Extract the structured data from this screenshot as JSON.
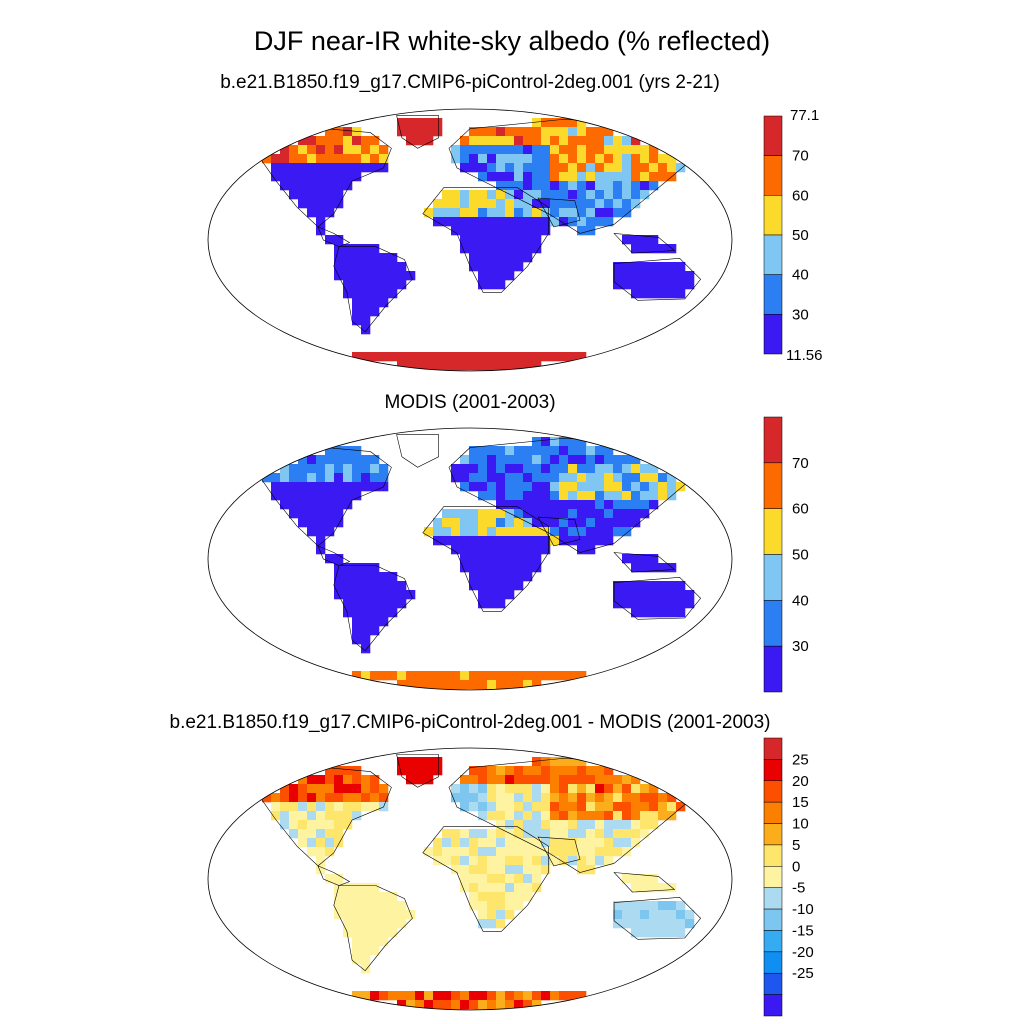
{
  "title": "DJF near-IR white-sky albedo (% reflected)",
  "colors": {
    "abs_scale": [
      "#3a19f2",
      "#2c7ff2",
      "#7fc7f2",
      "#fcda2c",
      "#fc6a00",
      "#d6282b"
    ],
    "diff_scale": [
      "#3a19f2",
      "#1f56ef",
      "#0f8ff2",
      "#35abf2",
      "#7cc6f0",
      "#acdaf0",
      "#fdf3a0",
      "#fde66b",
      "#fcad1c",
      "#fc7f00",
      "#fc5000",
      "#e90000",
      "#d6282b"
    ],
    "land": "#3a19f2",
    "ocean": "#ffffff",
    "outline": "#000000"
  },
  "panels": [
    {
      "id": "model",
      "subtitle": "b.e21.B1850.f19_g17.CMIP6-piControl-2deg.001 (yrs 2-21)",
      "map": "Robinson world map, gridded land albedo",
      "colorbar": {
        "scale": "abs",
        "top_label": "77.1",
        "bottom_label": "11.56",
        "labels": [
          "70",
          "60",
          "50",
          "40",
          "30"
        ]
      }
    },
    {
      "id": "obs",
      "subtitle": "MODIS (2001-2003)",
      "map": "Robinson world map, gridded land albedo",
      "colorbar": {
        "scale": "abs",
        "top_label": "",
        "bottom_label": "",
        "labels": [
          "70",
          "60",
          "50",
          "40",
          "30"
        ]
      }
    },
    {
      "id": "diff",
      "subtitle": "b.e21.B1850.f19_g17.CMIP6-piControl-2deg.001 - MODIS (2001-2003)",
      "map": "Robinson world map, gridded albedo difference",
      "colorbar": {
        "scale": "diff",
        "top_label": "",
        "bottom_label": "",
        "labels": [
          "25",
          "20",
          "15",
          "10",
          "5",
          "0",
          "-5",
          "-10",
          "-15",
          "-20",
          "-25"
        ]
      }
    }
  ],
  "chart_data": [
    {
      "type": "heatmap",
      "title": "b.e21.B1850.f19_g17.CMIP6-piControl-2deg.001 (yrs 2-21)",
      "levels": [
        30,
        40,
        50,
        60,
        70
      ],
      "range": [
        11.56,
        77.1
      ],
      "regions": [
        {
          "region": "Greenland",
          "category": ">70"
        },
        {
          "region": "Antarctica",
          "category": ">70"
        },
        {
          "region": "Northern Canada / Arctic",
          "category": "50-77"
        },
        {
          "region": "Siberia",
          "category": "40-77"
        },
        {
          "region": "Sahara / Arabia",
          "category": "40-60"
        },
        {
          "region": "Central Asia",
          "category": "50-70"
        },
        {
          "region": "South America",
          "category": "<30"
        },
        {
          "region": "Central/Southern Africa",
          "category": "<30"
        },
        {
          "region": "Australia",
          "category": "<30"
        },
        {
          "region": "Eastern North America",
          "category": "<30"
        }
      ]
    },
    {
      "type": "heatmap",
      "title": "MODIS (2001-2003)",
      "levels": [
        30,
        40,
        50,
        60,
        70
      ],
      "regions": [
        {
          "region": "Antarctica",
          "category": "60-70"
        },
        {
          "region": "Northern Canada / Arctic",
          "category": "30-40"
        },
        {
          "region": "Siberia",
          "category": "30-50"
        },
        {
          "region": "Sahara / Arabia",
          "category": "40-60"
        },
        {
          "region": "Central Asia",
          "category": "40-60"
        },
        {
          "region": "South America",
          "category": "<30"
        },
        {
          "region": "Central/Southern Africa",
          "category": "<30"
        },
        {
          "region": "Australia",
          "category": "<30"
        }
      ]
    },
    {
      "type": "heatmap",
      "title": "b.e21.B1850.f19_g17.CMIP6-piControl-2deg.001 - MODIS (2001-2003)",
      "levels": [
        -25,
        -20,
        -15,
        -10,
        -5,
        0,
        5,
        10,
        15,
        20,
        25
      ],
      "regions": [
        {
          "region": "Greenland",
          "category": ">25"
        },
        {
          "region": "Northern Canada / Arctic",
          "category": "15-25"
        },
        {
          "region": "Northern Siberia",
          "category": "15-25"
        },
        {
          "region": "Central Asia",
          "category": "10-25"
        },
        {
          "region": "Antarctica",
          "category": "10-25"
        },
        {
          "region": "Sahara",
          "category": "-5 to 5"
        },
        {
          "region": "South America",
          "category": "0-5"
        },
        {
          "region": "Africa",
          "category": "0-10"
        },
        {
          "region": "Australia",
          "category": "-5 to 0"
        },
        {
          "region": "Europe",
          "category": "-10 to 0"
        }
      ]
    }
  ]
}
